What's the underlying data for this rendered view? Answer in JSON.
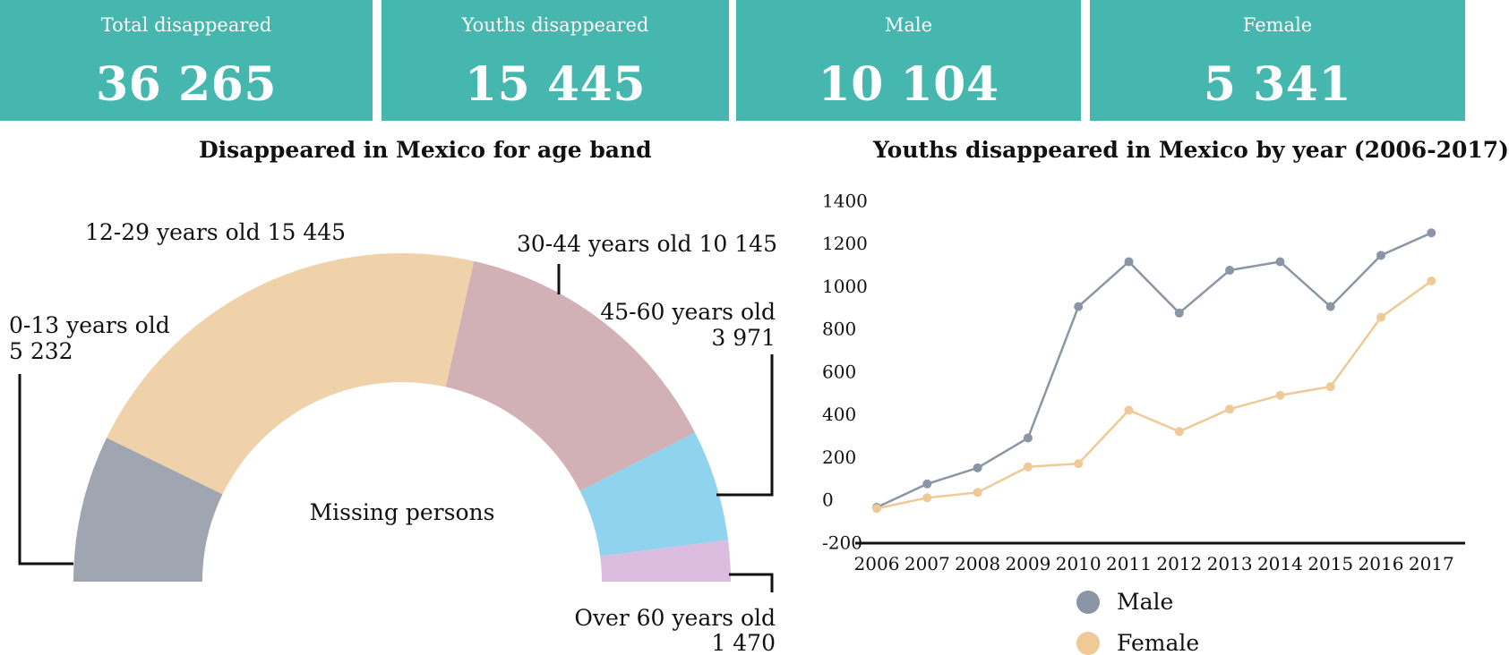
{
  "kpis": [
    {
      "label": "Total disappeared",
      "value": "36 265"
    },
    {
      "label": "Youths disappeared",
      "value": "15 445"
    },
    {
      "label": "Male",
      "value": "10 104"
    },
    {
      "label": "Female",
      "value": "5 341"
    }
  ],
  "colors": {
    "kpi_bg": "#45b7ae",
    "male": "#8a95a5",
    "female": "#efc996",
    "band_0_13": "#a0a6b1",
    "band_12_29": "#efd1aa",
    "band_30_44": "#d2b1b6",
    "band_45_60": "#90d3ee",
    "band_over_60": "#ddbddf"
  },
  "chart_data": [
    {
      "type": "pie",
      "title": "Disappeared in Mexico for age band",
      "center_label": "Missing persons",
      "slices": [
        {
          "label": "0-13 years old",
          "value": 5232,
          "value_text": "5 232"
        },
        {
          "label": "12-29 years old",
          "value": 15445,
          "value_text": "15 445"
        },
        {
          "label": "30-44 years old",
          "value": 10145,
          "value_text": "10 145"
        },
        {
          "label": "45-60 years old",
          "value": 3971,
          "value_text": "3 971"
        },
        {
          "label": "Over 60 years old",
          "value": 1470,
          "value_text": "1 470"
        }
      ]
    },
    {
      "type": "line",
      "title": "Youths disappeared in Mexico by year (2006-2017)",
      "categories": [
        "2006",
        "2007",
        "2008",
        "2009",
        "2010",
        "2011",
        "2012",
        "2013",
        "2014",
        "2015",
        "2016",
        "2017"
      ],
      "yticks": [
        -200,
        0,
        200,
        400,
        600,
        800,
        1000,
        1200,
        1400
      ],
      "ylim": [
        -200,
        1400
      ],
      "series": [
        {
          "name": "Male",
          "values": [
            -40,
            70,
            145,
            285,
            900,
            1110,
            870,
            1070,
            1110,
            900,
            1140,
            1245
          ]
        },
        {
          "name": "Female",
          "values": [
            -45,
            5,
            30,
            150,
            165,
            415,
            315,
            420,
            485,
            525,
            850,
            1020
          ]
        }
      ],
      "legend": "bottom"
    }
  ]
}
